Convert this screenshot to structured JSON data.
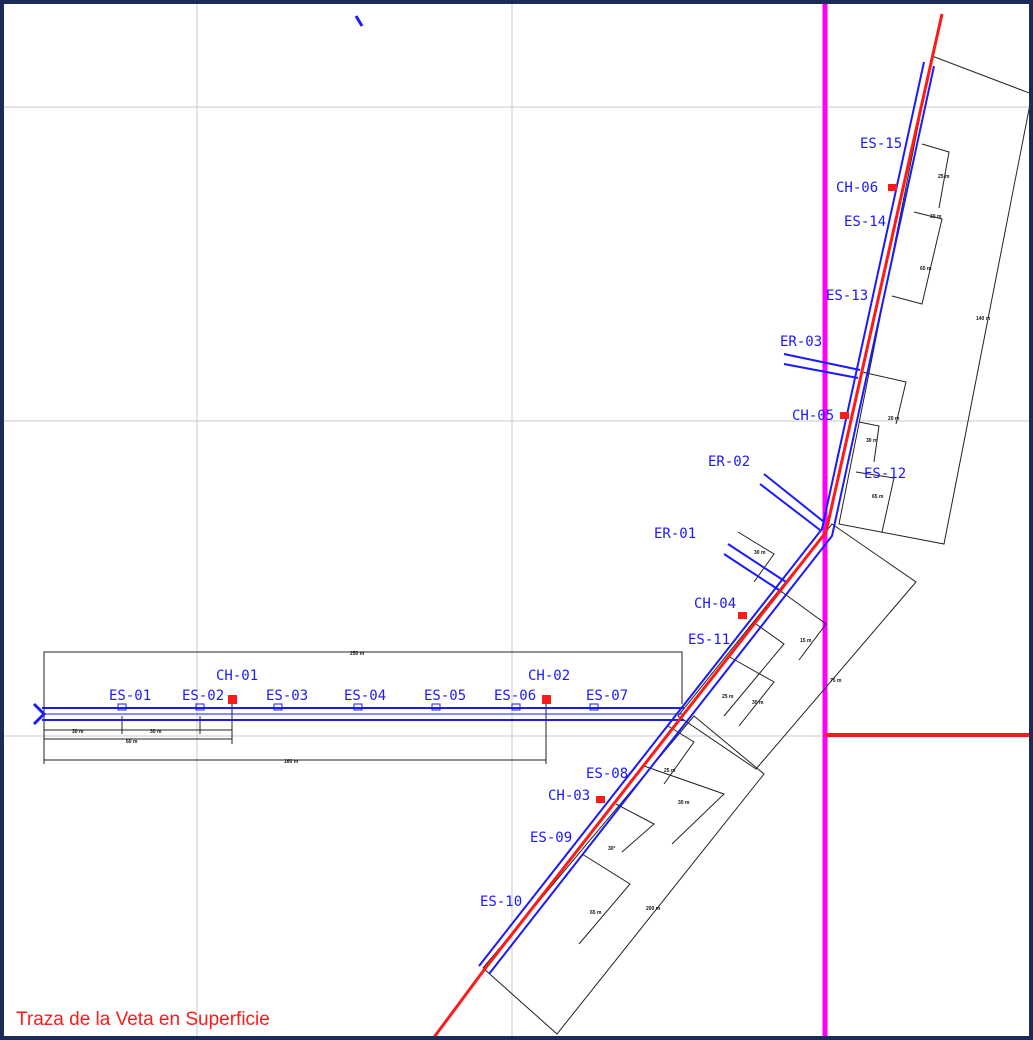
{
  "caption": "Traza de la Veta en Superficie",
  "colors": {
    "vein": "#ff1a1a",
    "workings": "#1a1aff",
    "magenta_line": "#ff00ff",
    "grid": "#c8c8c8",
    "dimension": "#222222",
    "frame": "#1b2b55"
  },
  "labels": {
    "es01": "ES-01",
    "es02": "ES-02",
    "es03": "ES-03",
    "es04": "ES-04",
    "es05": "ES-05",
    "es06": "ES-06",
    "es07": "ES-07",
    "es08": "ES-08",
    "es09": "ES-09",
    "es10": "ES-10",
    "es11": "ES-11",
    "es12": "ES-12",
    "es13": "ES-13",
    "es14": "ES-14",
    "es15": "ES-15",
    "ch01": "CH-01",
    "ch02": "CH-02",
    "ch03": "CH-03",
    "ch04": "CH-04",
    "ch05": "CH-05",
    "ch06": "CH-06",
    "er01": "ER-01",
    "er02": "ER-02",
    "er03": "ER-03"
  },
  "dimensions": {
    "total_horizontal": "250 m",
    "seg_a": "30 m",
    "seg_b": "30 m",
    "seg_60": "60 m",
    "seg_160": "160 m",
    "upper_140": "140 m",
    "upper_25": "25 m",
    "upper_30": "30 m",
    "upper_65": "65 m",
    "mid_20": "20 m",
    "mid_30": "30 m",
    "mid_65": "65 m",
    "er01_dim": "30 m",
    "lower_15": "15 m",
    "lower_25": "25 m",
    "lower_30": "30 m",
    "lower_75": "75 m",
    "sw_25": "25 m",
    "sw_30": "30 m",
    "sw_65": "65 m",
    "sw_total": "200 m",
    "sw_angle": "30°"
  }
}
